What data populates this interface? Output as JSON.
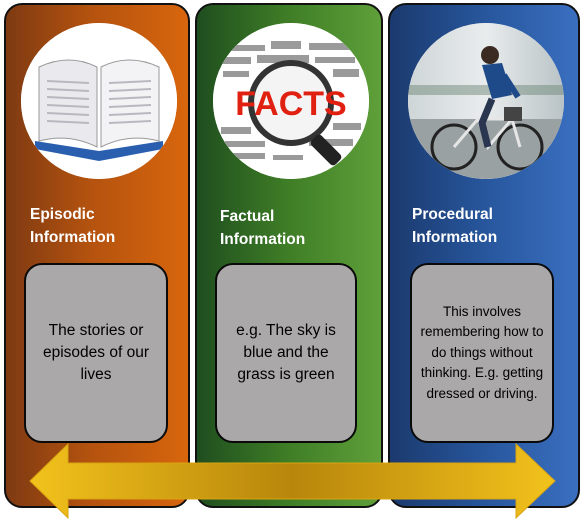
{
  "colors": {
    "episodic": "#c05a0e",
    "factual": "#3f7e26",
    "procedural": "#27569c",
    "box_fill": "#aaa8a8",
    "arrow": "#e0b01a"
  },
  "panels": [
    {
      "heading_line1": "Episodic",
      "heading_line2": "Information",
      "body": "The stories or episodes of our lives",
      "icon": "open-book-icon"
    },
    {
      "heading_line1": "Factual",
      "heading_line2": "Information",
      "body": "e.g. The sky is blue and the grass is green",
      "icon": "magnifier-facts-icon",
      "image_text": "FACTS"
    },
    {
      "heading_line1": "Procedural",
      "heading_line2": "Information",
      "body": "This involves remembering how to do things without thinking. E.g. getting dressed or driving.",
      "icon": "cyclist-icon"
    }
  ],
  "arrow": {
    "direction": "double-headed-horizontal"
  }
}
